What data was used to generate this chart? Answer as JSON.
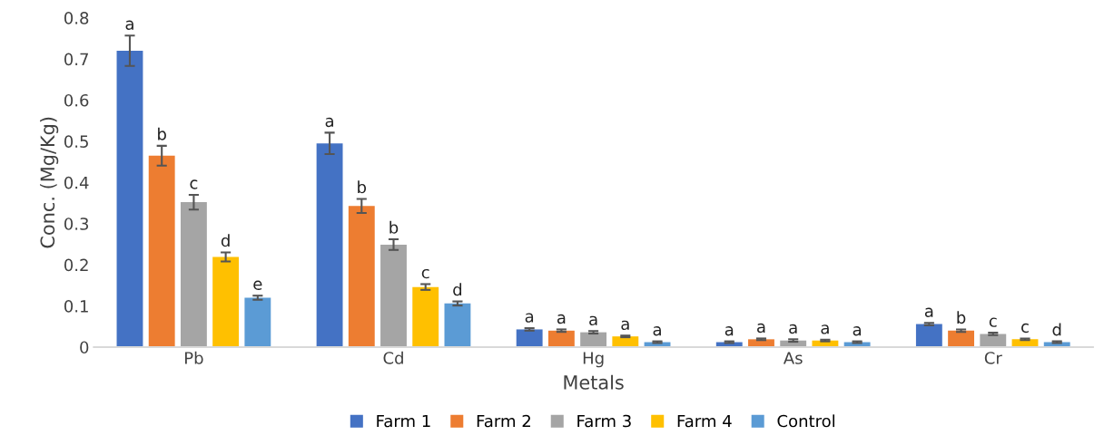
{
  "chart_data": {
    "type": "bar",
    "xlabel": "Metals",
    "ylabel": "Conc. (Mg/Kg)",
    "categories": [
      "Pb",
      "Cd",
      "Hg",
      "As",
      "Cr"
    ],
    "series": [
      {
        "name": "Farm 1",
        "color": "#4472c4",
        "values": [
          0.72,
          0.495,
          0.043,
          0.012,
          0.056
        ],
        "errors": [
          0.037,
          0.026,
          0.003,
          0.002,
          0.003
        ],
        "value_labels": [
          "a",
          "a",
          "a",
          "a",
          "a"
        ]
      },
      {
        "name": "Farm 2",
        "color": "#ed7d31",
        "values": [
          0.465,
          0.343,
          0.04,
          0.019,
          0.04
        ],
        "errors": [
          0.024,
          0.017,
          0.003,
          0.002,
          0.003
        ],
        "value_labels": [
          "b",
          "b",
          "a",
          "a",
          "b"
        ]
      },
      {
        "name": "Farm 3",
        "color": "#a5a5a5",
        "values": [
          0.352,
          0.249,
          0.036,
          0.016,
          0.032
        ],
        "errors": [
          0.018,
          0.013,
          0.003,
          0.003,
          0.003
        ],
        "value_labels": [
          "c",
          "b",
          "a",
          "a",
          "c"
        ]
      },
      {
        "name": "Farm 4",
        "color": "#ffc000",
        "values": [
          0.219,
          0.146,
          0.026,
          0.016,
          0.019
        ],
        "errors": [
          0.011,
          0.007,
          0.002,
          0.002,
          0.002
        ],
        "value_labels": [
          "d",
          "c",
          "a",
          "a",
          "c"
        ]
      },
      {
        "name": "Control",
        "color": "#5b9bd5",
        "values": [
          0.12,
          0.106,
          0.012,
          0.012,
          0.012
        ],
        "errors": [
          0.005,
          0.005,
          0.002,
          0.002,
          0.002
        ],
        "value_labels": [
          "e",
          "d",
          "a",
          "a",
          "d"
        ]
      }
    ],
    "ylim": [
      0,
      0.8
    ],
    "yticks": [
      {
        "value": 0,
        "label": "0"
      },
      0.1,
      0.2,
      0.3,
      0.4,
      0.5,
      0.6,
      0.7,
      0.8
    ],
    "grid": false,
    "legend": "bottom"
  }
}
